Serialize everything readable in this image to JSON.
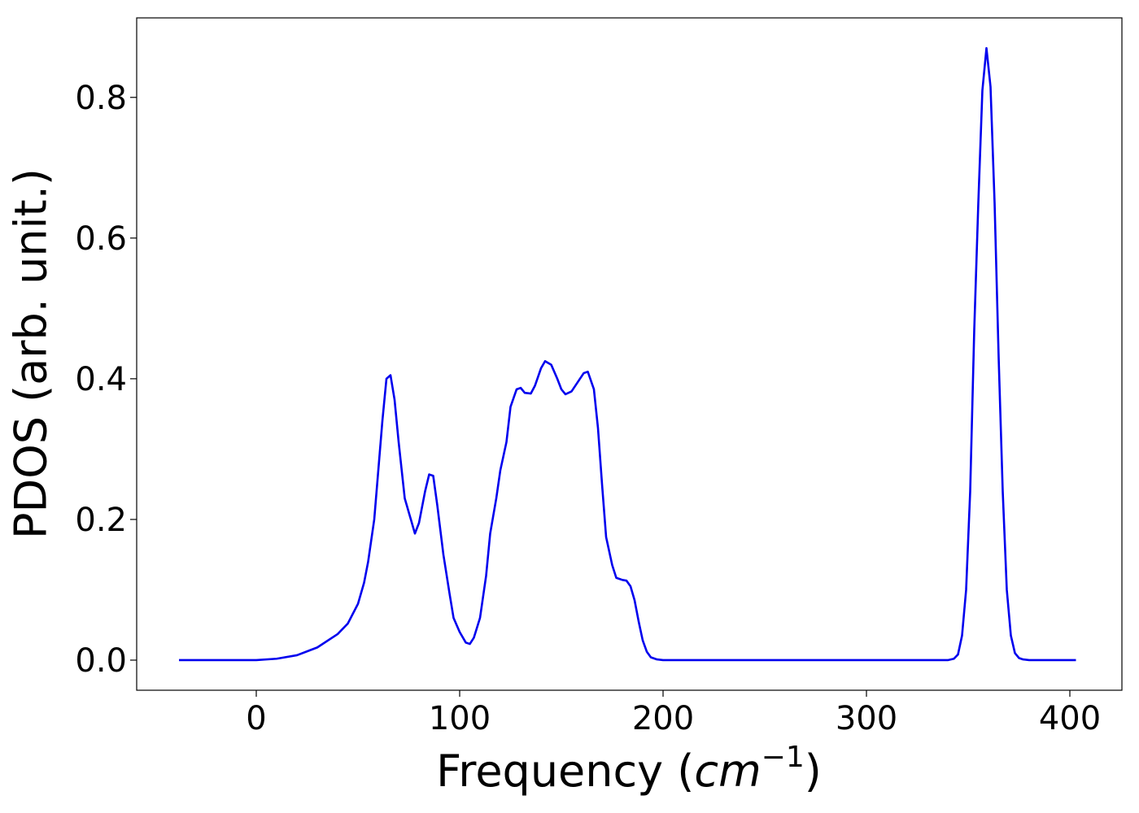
{
  "chart_data": {
    "type": "line",
    "xlabel": [
      "Frequency (",
      "cm",
      "−1",
      ")"
    ],
    "ylabel": "PDOS (arb. unit.)",
    "x": [
      -38,
      0,
      10,
      20,
      30,
      40,
      45,
      50,
      53,
      55,
      58,
      60,
      62,
      64,
      66,
      68,
      70,
      73,
      76,
      78,
      80,
      83,
      85,
      87,
      89,
      92,
      95,
      97,
      100,
      103,
      105,
      107,
      110,
      113,
      115,
      118,
      120,
      123,
      125,
      128,
      130,
      132,
      135,
      137,
      140,
      142,
      145,
      148,
      150,
      152,
      155,
      158,
      161,
      163,
      166,
      168,
      170,
      172,
      175,
      177,
      180,
      182,
      184,
      186,
      188,
      190,
      192,
      194,
      197,
      200,
      340,
      343,
      345,
      347,
      349,
      351,
      353,
      355,
      357,
      359,
      361,
      363,
      365,
      367,
      369,
      371,
      373,
      375,
      377,
      380,
      403
    ],
    "series": [
      {
        "name": null,
        "color": "#0000ee",
        "values": [
          0,
          0,
          0.002,
          0.007,
          0.018,
          0.037,
          0.052,
          0.08,
          0.11,
          0.14,
          0.2,
          0.27,
          0.34,
          0.4,
          0.405,
          0.37,
          0.31,
          0.23,
          0.2,
          0.18,
          0.195,
          0.24,
          0.264,
          0.262,
          0.22,
          0.15,
          0.095,
          0.06,
          0.04,
          0.025,
          0.023,
          0.032,
          0.06,
          0.12,
          0.18,
          0.23,
          0.27,
          0.31,
          0.36,
          0.385,
          0.387,
          0.38,
          0.379,
          0.39,
          0.415,
          0.425,
          0.42,
          0.4,
          0.385,
          0.378,
          0.382,
          0.395,
          0.408,
          0.41,
          0.385,
          0.33,
          0.25,
          0.175,
          0.135,
          0.117,
          0.114,
          0.113,
          0.105,
          0.085,
          0.055,
          0.028,
          0.012,
          0.004,
          0.001,
          0,
          0,
          0.002,
          0.008,
          0.035,
          0.1,
          0.24,
          0.47,
          0.65,
          0.81,
          0.87,
          0.815,
          0.65,
          0.43,
          0.24,
          0.1,
          0.035,
          0.01,
          0.003,
          0.001,
          0,
          0
        ]
      }
    ],
    "xlim": [
      -58.8,
      425.6
    ],
    "ylim": [
      -0.0428,
      0.913
    ],
    "xticks": [
      0,
      100,
      200,
      300,
      400
    ],
    "yticks": [
      {
        "value": 0,
        "label": "0.0"
      },
      0.2,
      0.4,
      0.6,
      0.8
    ],
    "grid": false
  }
}
